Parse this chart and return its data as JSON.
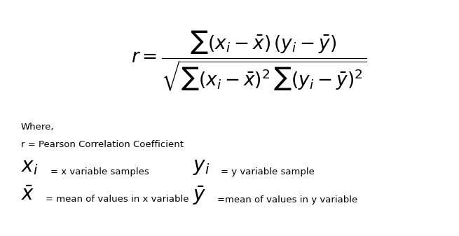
{
  "bg_color": "#ffffff",
  "text_color": "#000000",
  "where_text": "Where,",
  "r_def": "r = Pearson Correlation Coefficient",
  "xi_desc": "= x variable samples",
  "yi_desc": "= y variable sample",
  "xbar_desc": "= mean of values in x variable",
  "ybar_desc": "=mean of values in y variable",
  "formula_fontsize": 19,
  "label_fontsize": 9.5,
  "symbol_fontsize": 20,
  "small_fontsize": 9.5,
  "fig_width": 6.55,
  "fig_height": 3.37,
  "dpi": 100
}
